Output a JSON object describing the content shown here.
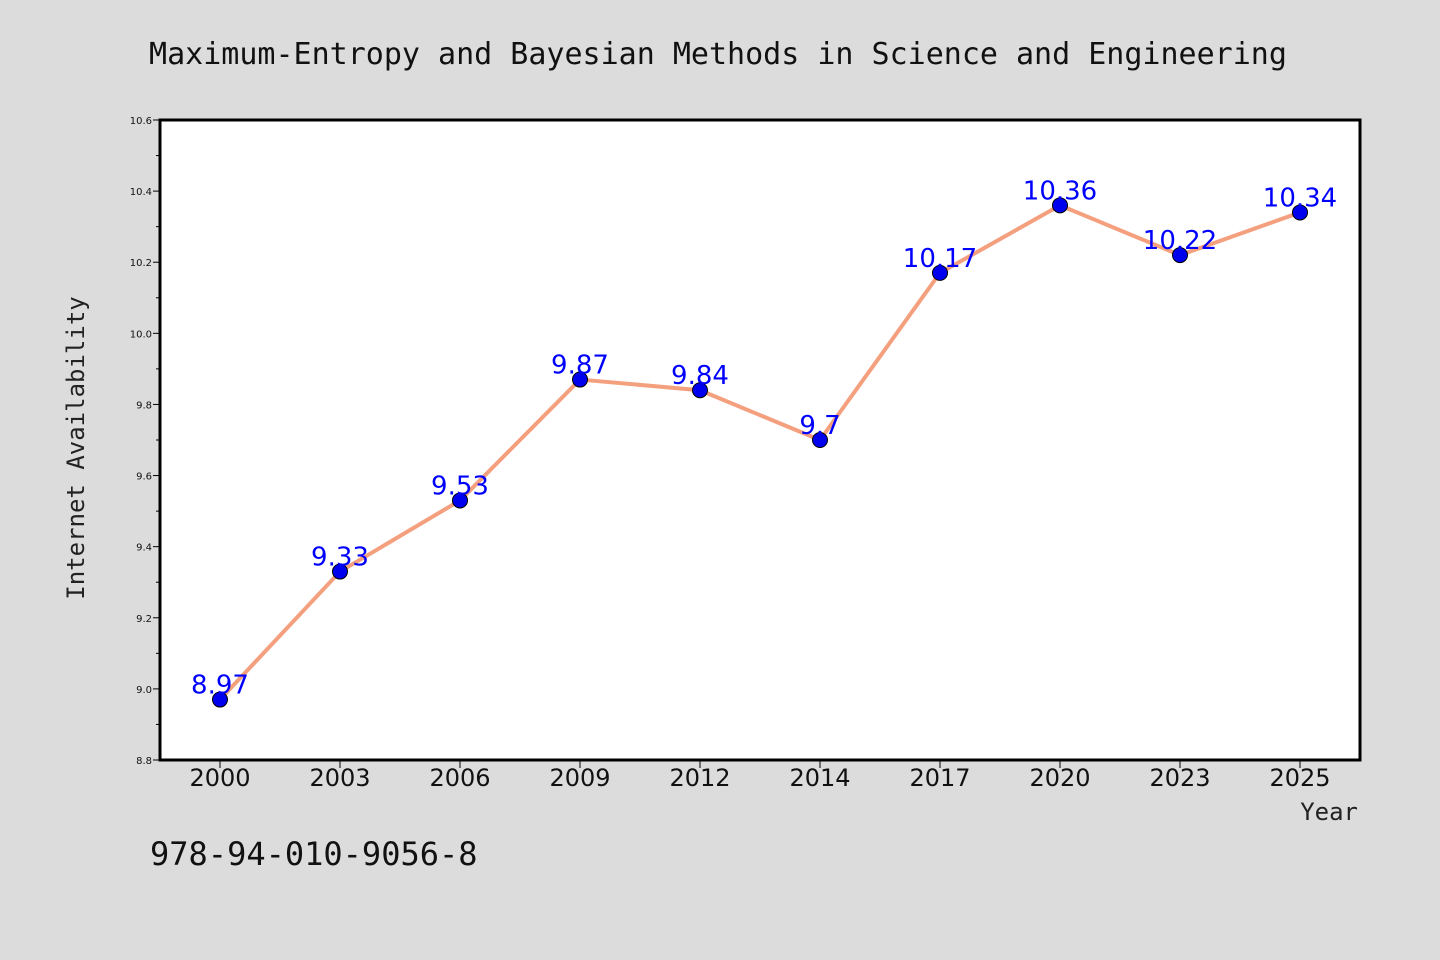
{
  "chart_data": {
    "type": "line",
    "title": "Maximum-Entropy and Bayesian Methods in Science and Engineering",
    "xlabel": "Year",
    "ylabel": "Internet Availability",
    "categories": [
      "2000",
      "2003",
      "2006",
      "2009",
      "2012",
      "2014",
      "2017",
      "2020",
      "2023",
      "2025"
    ],
    "series": [
      {
        "values": [
          8.97,
          9.33,
          9.53,
          9.87,
          9.84,
          9.7,
          10.17,
          10.36,
          10.22,
          10.34
        ],
        "data_labels": [
          "8.97",
          "9.33",
          "9.53",
          "9.87",
          "9.84",
          "9.7",
          "10.17",
          "10.36",
          "10.22",
          "10.34"
        ],
        "line_color": "#f4a07e",
        "marker_color": "#0000ee"
      }
    ],
    "ylim": [
      8.8,
      10.6
    ],
    "yticks": [
      "8.8",
      "9.0",
      "9.2",
      "9.4",
      "9.6",
      "9.8",
      "10.0",
      "10.2",
      "10.4",
      "10.6"
    ],
    "grid": false,
    "legend": "none",
    "label_color": "#0000ff"
  },
  "footer": {
    "isbn": "978-94-010-9056-8"
  },
  "colors": {
    "background": "#dcdcdc",
    "plot_area": "#ffffff"
  }
}
